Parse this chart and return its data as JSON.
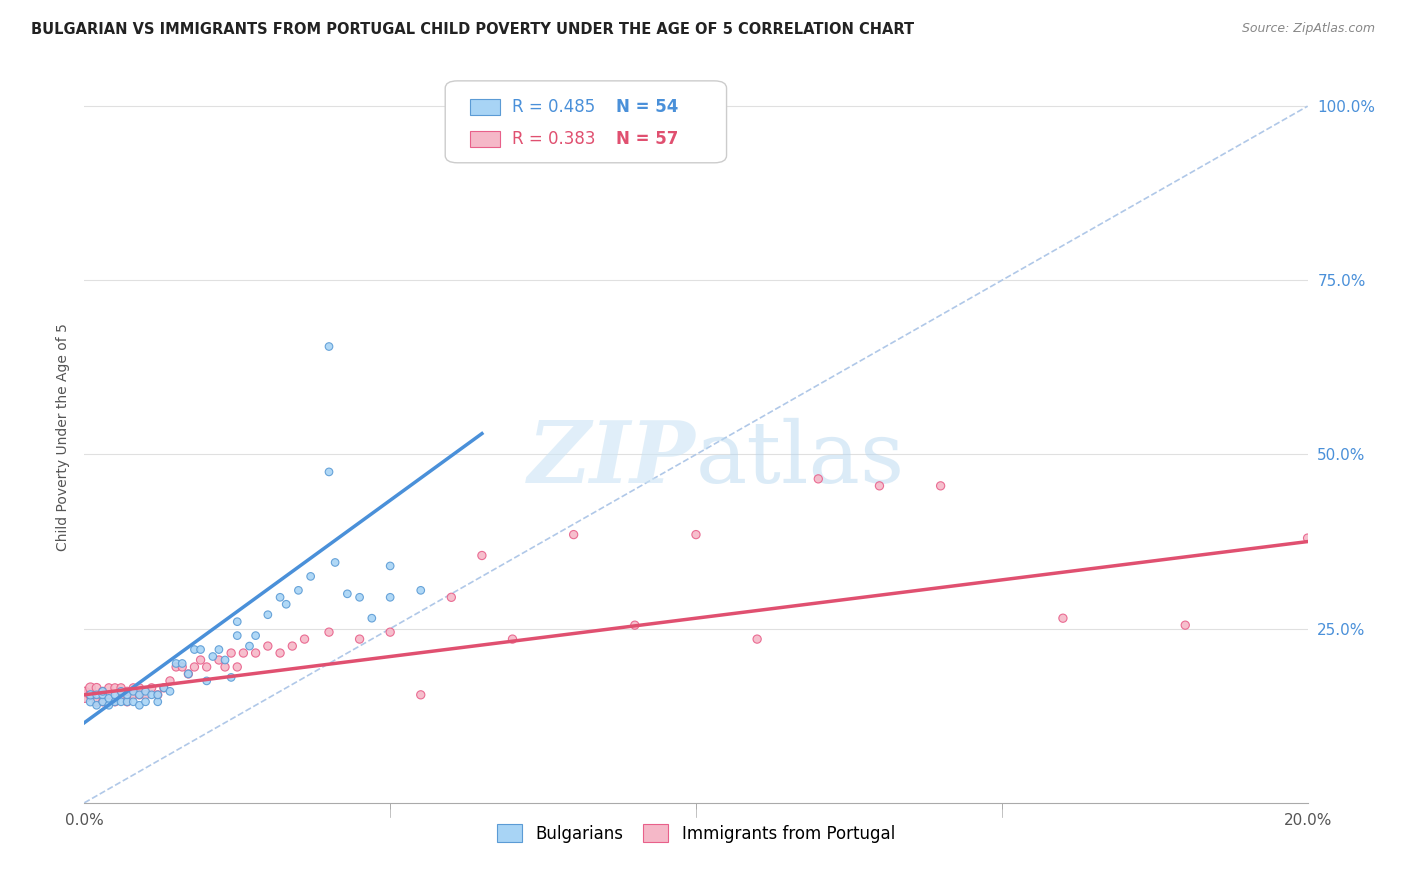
{
  "title": "BULGARIAN VS IMMIGRANTS FROM PORTUGAL CHILD POVERTY UNDER THE AGE OF 5 CORRELATION CHART",
  "source": "Source: ZipAtlas.com",
  "ylabel": "Child Poverty Under the Age of 5",
  "right_ytick_vals": [
    0.25,
    0.5,
    0.75,
    1.0
  ],
  "right_ytick_labels": [
    "25.0%",
    "50.0%",
    "75.0%",
    "100.0%"
  ],
  "legend_blue_r": "R = 0.485",
  "legend_blue_n": "N = 54",
  "legend_pink_r": "R = 0.383",
  "legend_pink_n": "N = 57",
  "bg_color": "#ffffff",
  "grid_color": "#e0e0e0",
  "blue_fill": "#a8d4f5",
  "pink_fill": "#f5b8c8",
  "blue_edge": "#5b9bd5",
  "pink_edge": "#e8608a",
  "blue_line_color": "#4a90d9",
  "pink_line_color": "#e05070",
  "diag_line_color": "#b0c8e8",
  "right_axis_color": "#4a90d9",
  "blue_scatter_x": [
    0.001,
    0.001,
    0.002,
    0.002,
    0.003,
    0.003,
    0.003,
    0.004,
    0.004,
    0.005,
    0.005,
    0.006,
    0.006,
    0.007,
    0.007,
    0.008,
    0.008,
    0.009,
    0.009,
    0.01,
    0.01,
    0.011,
    0.012,
    0.012,
    0.013,
    0.014,
    0.015,
    0.016,
    0.017,
    0.018,
    0.019,
    0.02,
    0.021,
    0.022,
    0.023,
    0.024,
    0.025,
    0.025,
    0.027,
    0.028,
    0.03,
    0.032,
    0.033,
    0.035,
    0.037,
    0.04,
    0.041,
    0.043,
    0.045,
    0.047,
    0.05,
    0.055,
    0.04,
    0.05
  ],
  "blue_scatter_y": [
    0.145,
    0.155,
    0.14,
    0.155,
    0.145,
    0.155,
    0.16,
    0.14,
    0.15,
    0.145,
    0.155,
    0.145,
    0.16,
    0.145,
    0.155,
    0.145,
    0.16,
    0.14,
    0.155,
    0.145,
    0.16,
    0.155,
    0.145,
    0.155,
    0.165,
    0.16,
    0.2,
    0.2,
    0.185,
    0.22,
    0.22,
    0.175,
    0.21,
    0.22,
    0.205,
    0.18,
    0.24,
    0.26,
    0.225,
    0.24,
    0.27,
    0.295,
    0.285,
    0.305,
    0.325,
    0.475,
    0.345,
    0.3,
    0.295,
    0.265,
    0.295,
    0.305,
    0.655,
    0.34
  ],
  "blue_scatter_s": [
    35,
    35,
    30,
    30,
    30,
    30,
    30,
    30,
    30,
    30,
    30,
    30,
    30,
    30,
    30,
    30,
    30,
    30,
    30,
    30,
    30,
    30,
    30,
    30,
    30,
    30,
    30,
    30,
    30,
    30,
    30,
    30,
    30,
    30,
    30,
    30,
    30,
    30,
    30,
    30,
    30,
    30,
    30,
    30,
    30,
    30,
    30,
    30,
    30,
    30,
    30,
    30,
    30,
    30
  ],
  "pink_scatter_x": [
    0.0,
    0.001,
    0.001,
    0.002,
    0.002,
    0.003,
    0.003,
    0.004,
    0.004,
    0.005,
    0.005,
    0.006,
    0.006,
    0.007,
    0.007,
    0.008,
    0.008,
    0.009,
    0.009,
    0.01,
    0.011,
    0.012,
    0.013,
    0.014,
    0.015,
    0.016,
    0.017,
    0.018,
    0.019,
    0.02,
    0.022,
    0.023,
    0.024,
    0.025,
    0.026,
    0.028,
    0.03,
    0.032,
    0.034,
    0.036,
    0.04,
    0.045,
    0.05,
    0.055,
    0.06,
    0.065,
    0.07,
    0.08,
    0.09,
    0.1,
    0.11,
    0.12,
    0.13,
    0.14,
    0.16,
    0.18,
    0.2
  ],
  "pink_scatter_y": [
    0.155,
    0.155,
    0.165,
    0.145,
    0.165,
    0.145,
    0.16,
    0.155,
    0.165,
    0.145,
    0.165,
    0.155,
    0.165,
    0.145,
    0.16,
    0.155,
    0.165,
    0.155,
    0.165,
    0.155,
    0.165,
    0.155,
    0.165,
    0.175,
    0.195,
    0.195,
    0.185,
    0.195,
    0.205,
    0.195,
    0.205,
    0.195,
    0.215,
    0.195,
    0.215,
    0.215,
    0.225,
    0.215,
    0.225,
    0.235,
    0.245,
    0.235,
    0.245,
    0.155,
    0.295,
    0.355,
    0.235,
    0.385,
    0.255,
    0.385,
    0.235,
    0.465,
    0.455,
    0.455,
    0.265,
    0.255,
    0.38
  ],
  "pink_scatter_s": [
    120,
    50,
    50,
    40,
    40,
    35,
    35,
    35,
    35,
    35,
    35,
    35,
    35,
    35,
    35,
    35,
    35,
    35,
    35,
    35,
    35,
    35,
    35,
    35,
    35,
    35,
    35,
    35,
    35,
    35,
    35,
    35,
    35,
    35,
    35,
    35,
    35,
    35,
    35,
    35,
    35,
    35,
    35,
    35,
    35,
    35,
    35,
    35,
    35,
    35,
    35,
    35,
    35,
    35,
    35,
    35,
    35
  ],
  "blue_line_x": [
    0.0,
    0.065
  ],
  "blue_line_y": [
    0.115,
    0.53
  ],
  "pink_line_x": [
    0.0,
    0.2
  ],
  "pink_line_y": [
    0.155,
    0.375
  ],
  "diag_line_x": [
    0.0,
    0.2
  ],
  "diag_line_y": [
    0.0,
    1.0
  ],
  "xlim": [
    0.0,
    0.2
  ],
  "ylim": [
    0.0,
    1.05
  ],
  "xticks": [
    0.0,
    0.2
  ],
  "xtick_minor": [
    0.05,
    0.1,
    0.15
  ],
  "grid_yticks": [
    0.25,
    0.5,
    0.75,
    1.0
  ]
}
